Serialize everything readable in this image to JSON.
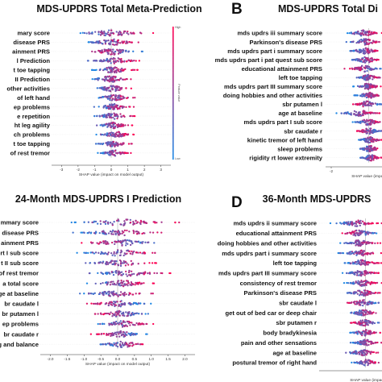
{
  "colors": {
    "low": "#1e88e5",
    "high": "#ff0052"
  },
  "chart_data": [
    {
      "type": "scatter",
      "letter": "",
      "title": "MDS-UPDRS Total Meta-Prediction",
      "xlabel": "SHAP value (impact on model output)",
      "xticks": [
        -3,
        -2,
        -1,
        0,
        1,
        2,
        3
      ],
      "xlim": [
        -3.6,
        3.6
      ],
      "zero": 0,
      "colorbar": {
        "high": "High",
        "low": "Low",
        "label": "Feature value"
      },
      "features": [
        {
          "name": "mary score",
          "spread": [
            -2.6,
            2.7
          ],
          "dir": 1
        },
        {
          "name": "disease PRS",
          "spread": [
            -1.9,
            2.0
          ],
          "dir": 1
        },
        {
          "name": "ainment PRS",
          "spread": [
            -1.7,
            1.9
          ],
          "dir": -1
        },
        {
          "name": "l Prediction",
          "spread": [
            -1.5,
            1.9
          ],
          "dir": 1
        },
        {
          "name": "t toe tapping",
          "spread": [
            -1.4,
            1.6
          ],
          "dir": 1
        },
        {
          "name": "II Prediction",
          "spread": [
            -1.6,
            1.5
          ],
          "dir": 1
        },
        {
          "name": "other activities",
          "spread": [
            -1.3,
            1.4
          ],
          "dir": 1
        },
        {
          "name": "of left hand",
          "spread": [
            -1.2,
            1.6
          ],
          "dir": 1
        },
        {
          "name": "ep problems",
          "spread": [
            -1.1,
            1.4
          ],
          "dir": 1
        },
        {
          "name": "e repetition",
          "spread": [
            -1.3,
            1.6
          ],
          "dir": 1
        },
        {
          "name": "ht leg agility",
          "spread": [
            -1.1,
            1.3
          ],
          "dir": 1
        },
        {
          "name": "ch problems",
          "spread": [
            -1.0,
            1.5
          ],
          "dir": 1
        },
        {
          "name": "t toe tapping",
          "spread": [
            -1.0,
            1.3
          ],
          "dir": 1
        },
        {
          "name": "of rest tremor",
          "spread": [
            -0.9,
            1.2
          ],
          "dir": 1
        }
      ]
    },
    {
      "type": "scatter",
      "letter": "B",
      "title": "MDS-UPDRS Total Di",
      "xlabel": "SHAP value (impac",
      "xticks": [
        -2
      ],
      "xlim": [
        -2.3,
        0.7
      ],
      "zero": 0,
      "colorbar": null,
      "features": [
        {
          "name": "mds updrs iii summary score",
          "spread": [
            -1.4,
            0.8
          ],
          "dir": 1
        },
        {
          "name": "Parkinson's disease PRS",
          "spread": [
            -1.2,
            0.8
          ],
          "dir": 1
        },
        {
          "name": "mds updrs part i summary score",
          "spread": [
            -1.2,
            0.8
          ],
          "dir": 1
        },
        {
          "name": "mds updrs part i pat quest sub score",
          "spread": [
            -1.1,
            0.8
          ],
          "dir": 1
        },
        {
          "name": "educational attainment PRS",
          "spread": [
            -1.3,
            0.8
          ],
          "dir": -1
        },
        {
          "name": "left toe tapping",
          "spread": [
            -0.9,
            0.8
          ],
          "dir": 1
        },
        {
          "name": "mds updrs part III summary score",
          "spread": [
            -0.9,
            0.8
          ],
          "dir": 1
        },
        {
          "name": "doing hobbies and other activities",
          "spread": [
            -0.8,
            0.8
          ],
          "dir": 1
        },
        {
          "name": "sbr putamen l",
          "spread": [
            -1.0,
            0.8
          ],
          "dir": -1
        },
        {
          "name": "age at baseline",
          "spread": [
            -1.8,
            0.8
          ],
          "dir": 1
        },
        {
          "name": "mds updrs part I sub score",
          "spread": [
            -0.9,
            0.8
          ],
          "dir": 1
        },
        {
          "name": "sbr caudate r",
          "spread": [
            -0.8,
            0.8
          ],
          "dir": -1
        },
        {
          "name": "kinetic tremor of left hand",
          "spread": [
            -0.7,
            0.8
          ],
          "dir": 1
        },
        {
          "name": "sleep problems",
          "spread": [
            -0.7,
            0.8
          ],
          "dir": 1
        },
        {
          "name": "rigidity rt lower extremity",
          "spread": [
            -0.6,
            0.8
          ],
          "dir": 1
        }
      ]
    },
    {
      "type": "scatter",
      "letter": "",
      "title": "24-Month MDS-UPDRS I Prediction",
      "xlabel": "SHAP value (impact on model output)",
      "xticks": [
        -2.0,
        -1.5,
        -1.0,
        -0.5,
        0.0,
        0.5,
        1.0,
        1.5,
        2.0
      ],
      "xlim": [
        -2.3,
        2.3
      ],
      "zero": 0,
      "colorbar": null,
      "features": [
        {
          "name": "mmary score",
          "spread": [
            -1.7,
            1.9
          ],
          "dir": 1
        },
        {
          "name": "disease PRS",
          "spread": [
            -1.5,
            1.6
          ],
          "dir": 1
        },
        {
          "name": "ainment PRS",
          "spread": [
            -1.4,
            1.5
          ],
          "dir": -1
        },
        {
          "name": "rt I sub score",
          "spread": [
            -1.3,
            1.4
          ],
          "dir": 1
        },
        {
          "name": "t II sub score",
          "spread": [
            -1.2,
            1.3
          ],
          "dir": 1
        },
        {
          "name": "of rest tremor",
          "spread": [
            -1.1,
            1.6
          ],
          "dir": 1
        },
        {
          "name": "a total score",
          "spread": [
            -1.0,
            1.2
          ],
          "dir": 1
        },
        {
          "name": "ge at baseline",
          "spread": [
            -1.2,
            1.1
          ],
          "dir": 1
        },
        {
          "name": "br caudate l",
          "spread": [
            -1.0,
            1.0
          ],
          "dir": -1
        },
        {
          "name": "br putamen l",
          "spread": [
            -0.9,
            1.0
          ],
          "dir": -1
        },
        {
          "name": "ep problems",
          "spread": [
            -0.8,
            1.1
          ],
          "dir": 1
        },
        {
          "name": "br caudate r",
          "spread": [
            -0.8,
            0.9
          ],
          "dir": -1
        },
        {
          "name": "g and balance",
          "spread": [
            -0.7,
            1.0
          ],
          "dir": 1
        }
      ]
    },
    {
      "type": "scatter",
      "letter": "D",
      "title": "36-Month MDS-UPDRS",
      "xlabel": "SHAP value (impac",
      "xticks": [],
      "xlim": [
        -2.5,
        0.9
      ],
      "zero": 0,
      "colorbar": null,
      "features": [
        {
          "name": "mds updrs ii summary score",
          "spread": [
            -1.9,
            0.9
          ],
          "dir": 1
        },
        {
          "name": "educational attainment PRS",
          "spread": [
            -1.6,
            0.9
          ],
          "dir": -1
        },
        {
          "name": "doing hobbies and other activities",
          "spread": [
            -1.5,
            0.9
          ],
          "dir": 1
        },
        {
          "name": "mds updrs part i summary score",
          "spread": [
            -1.5,
            0.9
          ],
          "dir": 1
        },
        {
          "name": "left toe tapping",
          "spread": [
            -1.3,
            0.9
          ],
          "dir": 1
        },
        {
          "name": "mds updrs part III summary score",
          "spread": [
            -1.3,
            0.9
          ],
          "dir": 1
        },
        {
          "name": "consistency of rest tremor",
          "spread": [
            -1.2,
            0.9
          ],
          "dir": 1
        },
        {
          "name": "Parkinson's disease PRS",
          "spread": [
            -1.2,
            0.9
          ],
          "dir": 1
        },
        {
          "name": "sbr caudate l",
          "spread": [
            -1.2,
            0.9
          ],
          "dir": -1
        },
        {
          "name": "get out of bed car or deep chair",
          "spread": [
            -1.1,
            0.9
          ],
          "dir": 1
        },
        {
          "name": "sbr putamen r",
          "spread": [
            -1.0,
            0.9
          ],
          "dir": -1
        },
        {
          "name": "body bradykinesia",
          "spread": [
            -1.0,
            0.9
          ],
          "dir": 1
        },
        {
          "name": "pain and other sensations",
          "spread": [
            -0.9,
            0.9
          ],
          "dir": 1
        },
        {
          "name": "age at baseline",
          "spread": [
            -1.3,
            0.9
          ],
          "dir": 1
        },
        {
          "name": "postural tremor of right hand",
          "spread": [
            -0.8,
            0.9
          ],
          "dir": 1
        }
      ]
    }
  ]
}
